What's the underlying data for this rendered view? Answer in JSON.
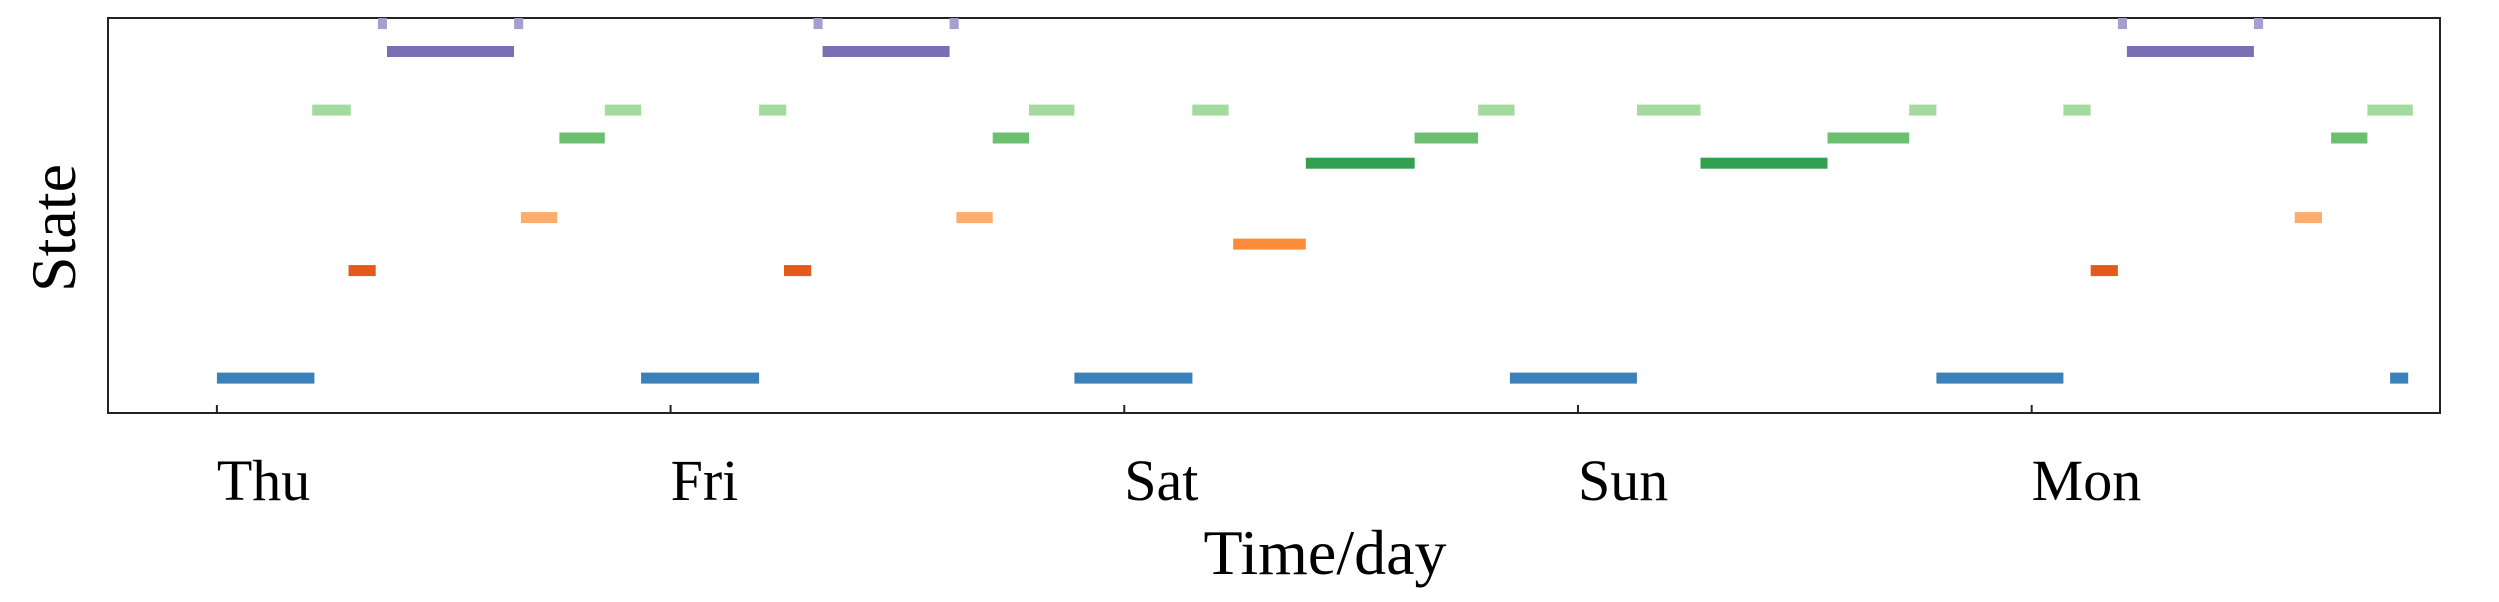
{
  "chart_data": {
    "type": "timeline",
    "xlabel": "Time/day",
    "ylabel": "State",
    "x_ticks": [
      "Thu",
      "Fri",
      "Sat",
      "Sun",
      "Mon"
    ],
    "xlim": [
      -0.24,
      4.9
    ],
    "ylim": [
      -0.25,
      13.9
    ],
    "grid": false,
    "legend": "none",
    "segments": [
      {
        "state": 1,
        "start": 0.0,
        "end": 0.215,
        "color": "#3a80b9"
      },
      {
        "state": 1,
        "start": 0.935,
        "end": 1.195,
        "color": "#3a80b9"
      },
      {
        "state": 1,
        "start": 1.89,
        "end": 2.15,
        "color": "#3a80b9"
      },
      {
        "state": 1,
        "start": 2.85,
        "end": 3.13,
        "color": "#3a80b9"
      },
      {
        "state": 1,
        "start": 3.79,
        "end": 4.07,
        "color": "#3a80b9"
      },
      {
        "state": 1,
        "start": 4.79,
        "end": 4.83,
        "color": "#3a80b9"
      },
      {
        "state": 4.85,
        "start": 0.29,
        "end": 0.35,
        "color": "#e45a1d"
      },
      {
        "state": 4.85,
        "start": 1.25,
        "end": 1.31,
        "color": "#e45a1d"
      },
      {
        "state": 4.85,
        "start": 4.13,
        "end": 4.19,
        "color": "#e45a1d"
      },
      {
        "state": 5.8,
        "start": 2.24,
        "end": 2.4,
        "color": "#fb8c3c"
      },
      {
        "state": 6.75,
        "start": 0.67,
        "end": 0.75,
        "color": "#fdad6b"
      },
      {
        "state": 6.75,
        "start": 1.63,
        "end": 1.71,
        "color": "#fdad6b"
      },
      {
        "state": 6.75,
        "start": 4.58,
        "end": 4.64,
        "color": "#fdad6b"
      },
      {
        "state": 8.7,
        "start": 2.4,
        "end": 2.64,
        "color": "#33a04f"
      },
      {
        "state": 8.7,
        "start": 3.27,
        "end": 3.55,
        "color": "#33a04f"
      },
      {
        "state": 9.6,
        "start": 0.755,
        "end": 0.855,
        "color": "#6dbf70"
      },
      {
        "state": 9.6,
        "start": 1.71,
        "end": 1.79,
        "color": "#6dbf70"
      },
      {
        "state": 9.6,
        "start": 2.64,
        "end": 2.78,
        "color": "#6dbf70"
      },
      {
        "state": 9.6,
        "start": 3.55,
        "end": 3.73,
        "color": "#6dbf70"
      },
      {
        "state": 9.6,
        "start": 4.66,
        "end": 4.74,
        "color": "#6dbf70"
      },
      {
        "state": 10.6,
        "start": 0.21,
        "end": 0.295,
        "color": "#a3da9d"
      },
      {
        "state": 10.6,
        "start": 0.855,
        "end": 0.935,
        "color": "#a3da9d"
      },
      {
        "state": 10.6,
        "start": 1.195,
        "end": 1.255,
        "color": "#a3da9d"
      },
      {
        "state": 10.6,
        "start": 1.79,
        "end": 1.89,
        "color": "#a3da9d"
      },
      {
        "state": 10.6,
        "start": 2.15,
        "end": 2.23,
        "color": "#a3da9d"
      },
      {
        "state": 10.6,
        "start": 2.78,
        "end": 2.86,
        "color": "#a3da9d"
      },
      {
        "state": 10.6,
        "start": 3.13,
        "end": 3.27,
        "color": "#a3da9d"
      },
      {
        "state": 10.6,
        "start": 3.73,
        "end": 3.79,
        "color": "#a3da9d"
      },
      {
        "state": 10.6,
        "start": 4.07,
        "end": 4.13,
        "color": "#a3da9d"
      },
      {
        "state": 10.6,
        "start": 4.74,
        "end": 4.84,
        "color": "#a3da9d"
      },
      {
        "state": 12.7,
        "start": 0.375,
        "end": 0.655,
        "color": "#7b6eb4"
      },
      {
        "state": 12.7,
        "start": 1.335,
        "end": 1.615,
        "color": "#7b6eb4"
      },
      {
        "state": 12.7,
        "start": 4.21,
        "end": 4.49,
        "color": "#7b6eb4"
      },
      {
        "state": 13.7,
        "start": 0.355,
        "end": 0.375,
        "color": "#a59ed0"
      },
      {
        "state": 13.7,
        "start": 0.655,
        "end": 0.675,
        "color": "#a59ed0"
      },
      {
        "state": 13.7,
        "start": 1.315,
        "end": 1.335,
        "color": "#a59ed0"
      },
      {
        "state": 13.7,
        "start": 1.615,
        "end": 1.635,
        "color": "#a59ed0"
      },
      {
        "state": 13.7,
        "start": 4.19,
        "end": 4.21,
        "color": "#a59ed0"
      },
      {
        "state": 13.7,
        "start": 4.49,
        "end": 4.51,
        "color": "#a59ed0"
      }
    ]
  }
}
